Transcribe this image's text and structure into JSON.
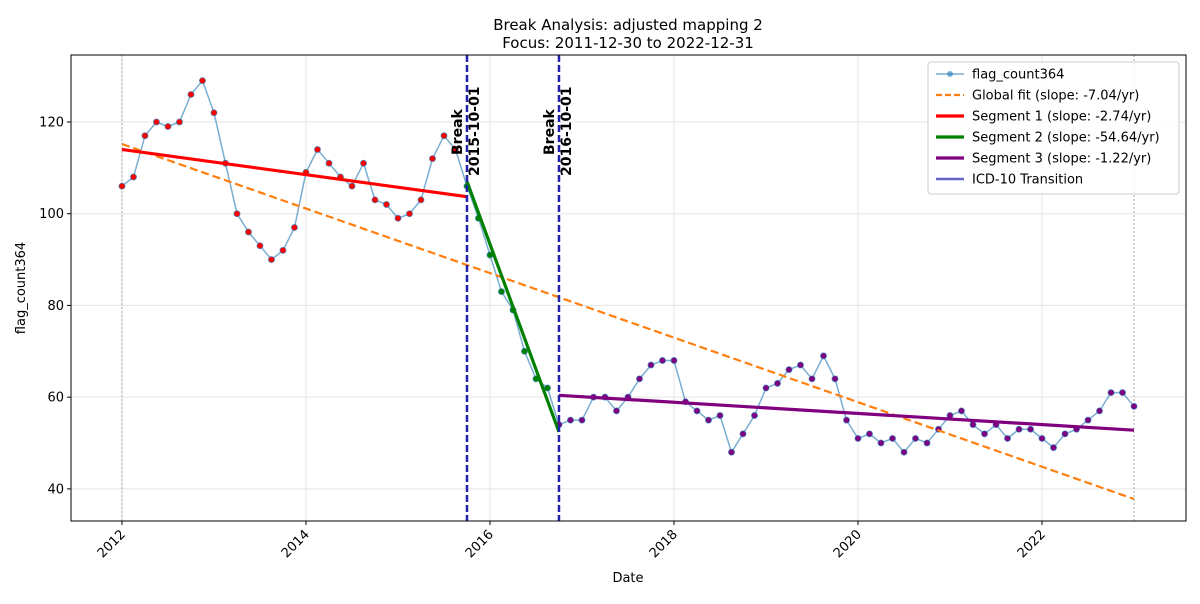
{
  "chart_data": {
    "type": "line",
    "title": "Break Analysis: adjusted mapping 2",
    "subtitle": "Focus: 2011-12-30 to 2022-12-31",
    "x_label": "Date",
    "y_label": "flag_count364",
    "xlim": [
      2011.446,
      2023.565
    ],
    "ylim": [
      33.0,
      134.6
    ],
    "xticks": [
      2012,
      2014,
      2016,
      2018,
      2020,
      2022
    ],
    "yticks": [
      40,
      60,
      80,
      100,
      120
    ],
    "grid": true,
    "legend": "upper right",
    "focus_range": [
      2012.0,
      2023.0
    ],
    "series": [
      {
        "name": "flag_count364",
        "color": "#1f77b4",
        "style": "line-marker",
        "x": [
          2012.0,
          2012.125,
          2012.25,
          2012.375,
          2012.5,
          2012.625,
          2012.75,
          2012.875,
          2013.0,
          2013.125,
          2013.25,
          2013.375,
          2013.5,
          2013.625,
          2013.75,
          2013.875,
          2014.0,
          2014.125,
          2014.25,
          2014.375,
          2014.5,
          2014.625,
          2014.75,
          2014.875,
          2015.0,
          2015.125,
          2015.25,
          2015.375,
          2015.5,
          2015.625,
          2015.75,
          2015.875,
          2016.0,
          2016.125,
          2016.25,
          2016.375,
          2016.5,
          2016.625,
          2016.75,
          2016.875,
          2017.0,
          2017.125,
          2017.25,
          2017.375,
          2017.5,
          2017.625,
          2017.75,
          2017.875,
          2018.0,
          2018.125,
          2018.25,
          2018.375,
          2018.5,
          2018.625,
          2018.75,
          2018.875,
          2019.0,
          2019.125,
          2019.25,
          2019.375,
          2019.5,
          2019.625,
          2019.75,
          2019.875,
          2020.0,
          2020.125,
          2020.25,
          2020.375,
          2020.5,
          2020.625,
          2020.75,
          2020.875,
          2021.0,
          2021.125,
          2021.25,
          2021.375,
          2021.5,
          2021.625,
          2021.75,
          2021.875,
          2022.0,
          2022.125,
          2022.25,
          2022.375,
          2022.5,
          2022.625,
          2022.75,
          2022.875,
          2023.0
        ],
        "values": [
          106,
          108,
          117,
          120,
          119,
          120,
          126,
          129,
          122,
          111,
          100,
          96,
          93,
          90,
          92,
          97,
          109,
          114,
          111,
          108,
          106,
          111,
          103,
          102,
          99,
          100,
          103,
          112,
          117,
          114,
          106,
          99,
          91,
          83,
          79,
          70,
          64,
          62,
          54,
          55,
          55,
          60,
          60,
          57,
          60,
          64,
          67,
          68,
          68,
          59,
          57,
          55,
          56,
          48,
          52,
          56,
          62,
          63,
          66,
          67,
          64,
          69,
          64,
          55,
          51,
          52,
          50,
          51,
          48,
          51,
          50,
          53,
          56,
          57,
          54,
          52,
          54,
          51,
          53,
          53,
          51,
          49,
          52,
          53,
          55,
          57,
          61,
          61,
          58
        ]
      },
      {
        "name": "Global fit (slope: -7.04/yr)",
        "color": "#ff7f0e",
        "style": "dashed",
        "x": [
          2012.0,
          2023.0
        ],
        "values": [
          115.2,
          37.8
        ]
      },
      {
        "name": "Segment 1 (slope: -2.74/yr)",
        "color": "#ff0000",
        "style": "solid",
        "x": [
          2012.0,
          2015.75
        ],
        "values": [
          114.0,
          103.7
        ]
      },
      {
        "name": "Segment 2 (slope: -54.64/yr)",
        "color": "#008000",
        "style": "solid",
        "x": [
          2015.75,
          2016.75
        ],
        "values": [
          107.0,
          52.4
        ]
      },
      {
        "name": "Segment 3 (slope: -1.22/yr)",
        "color": "#800080",
        "style": "solid",
        "x": [
          2016.75,
          2023.0
        ],
        "values": [
          60.4,
          52.8
        ]
      }
    ],
    "transition": {
      "name": "ICD-10 Transition",
      "color": "#2222aa",
      "x": [
        2015.75,
        2016.75
      ]
    },
    "annotations": [
      {
        "label": "Break",
        "date": "2015-10-01",
        "x": 2015.75
      },
      {
        "label": "Break",
        "date": "2016-10-01",
        "x": 2016.75
      }
    ]
  }
}
